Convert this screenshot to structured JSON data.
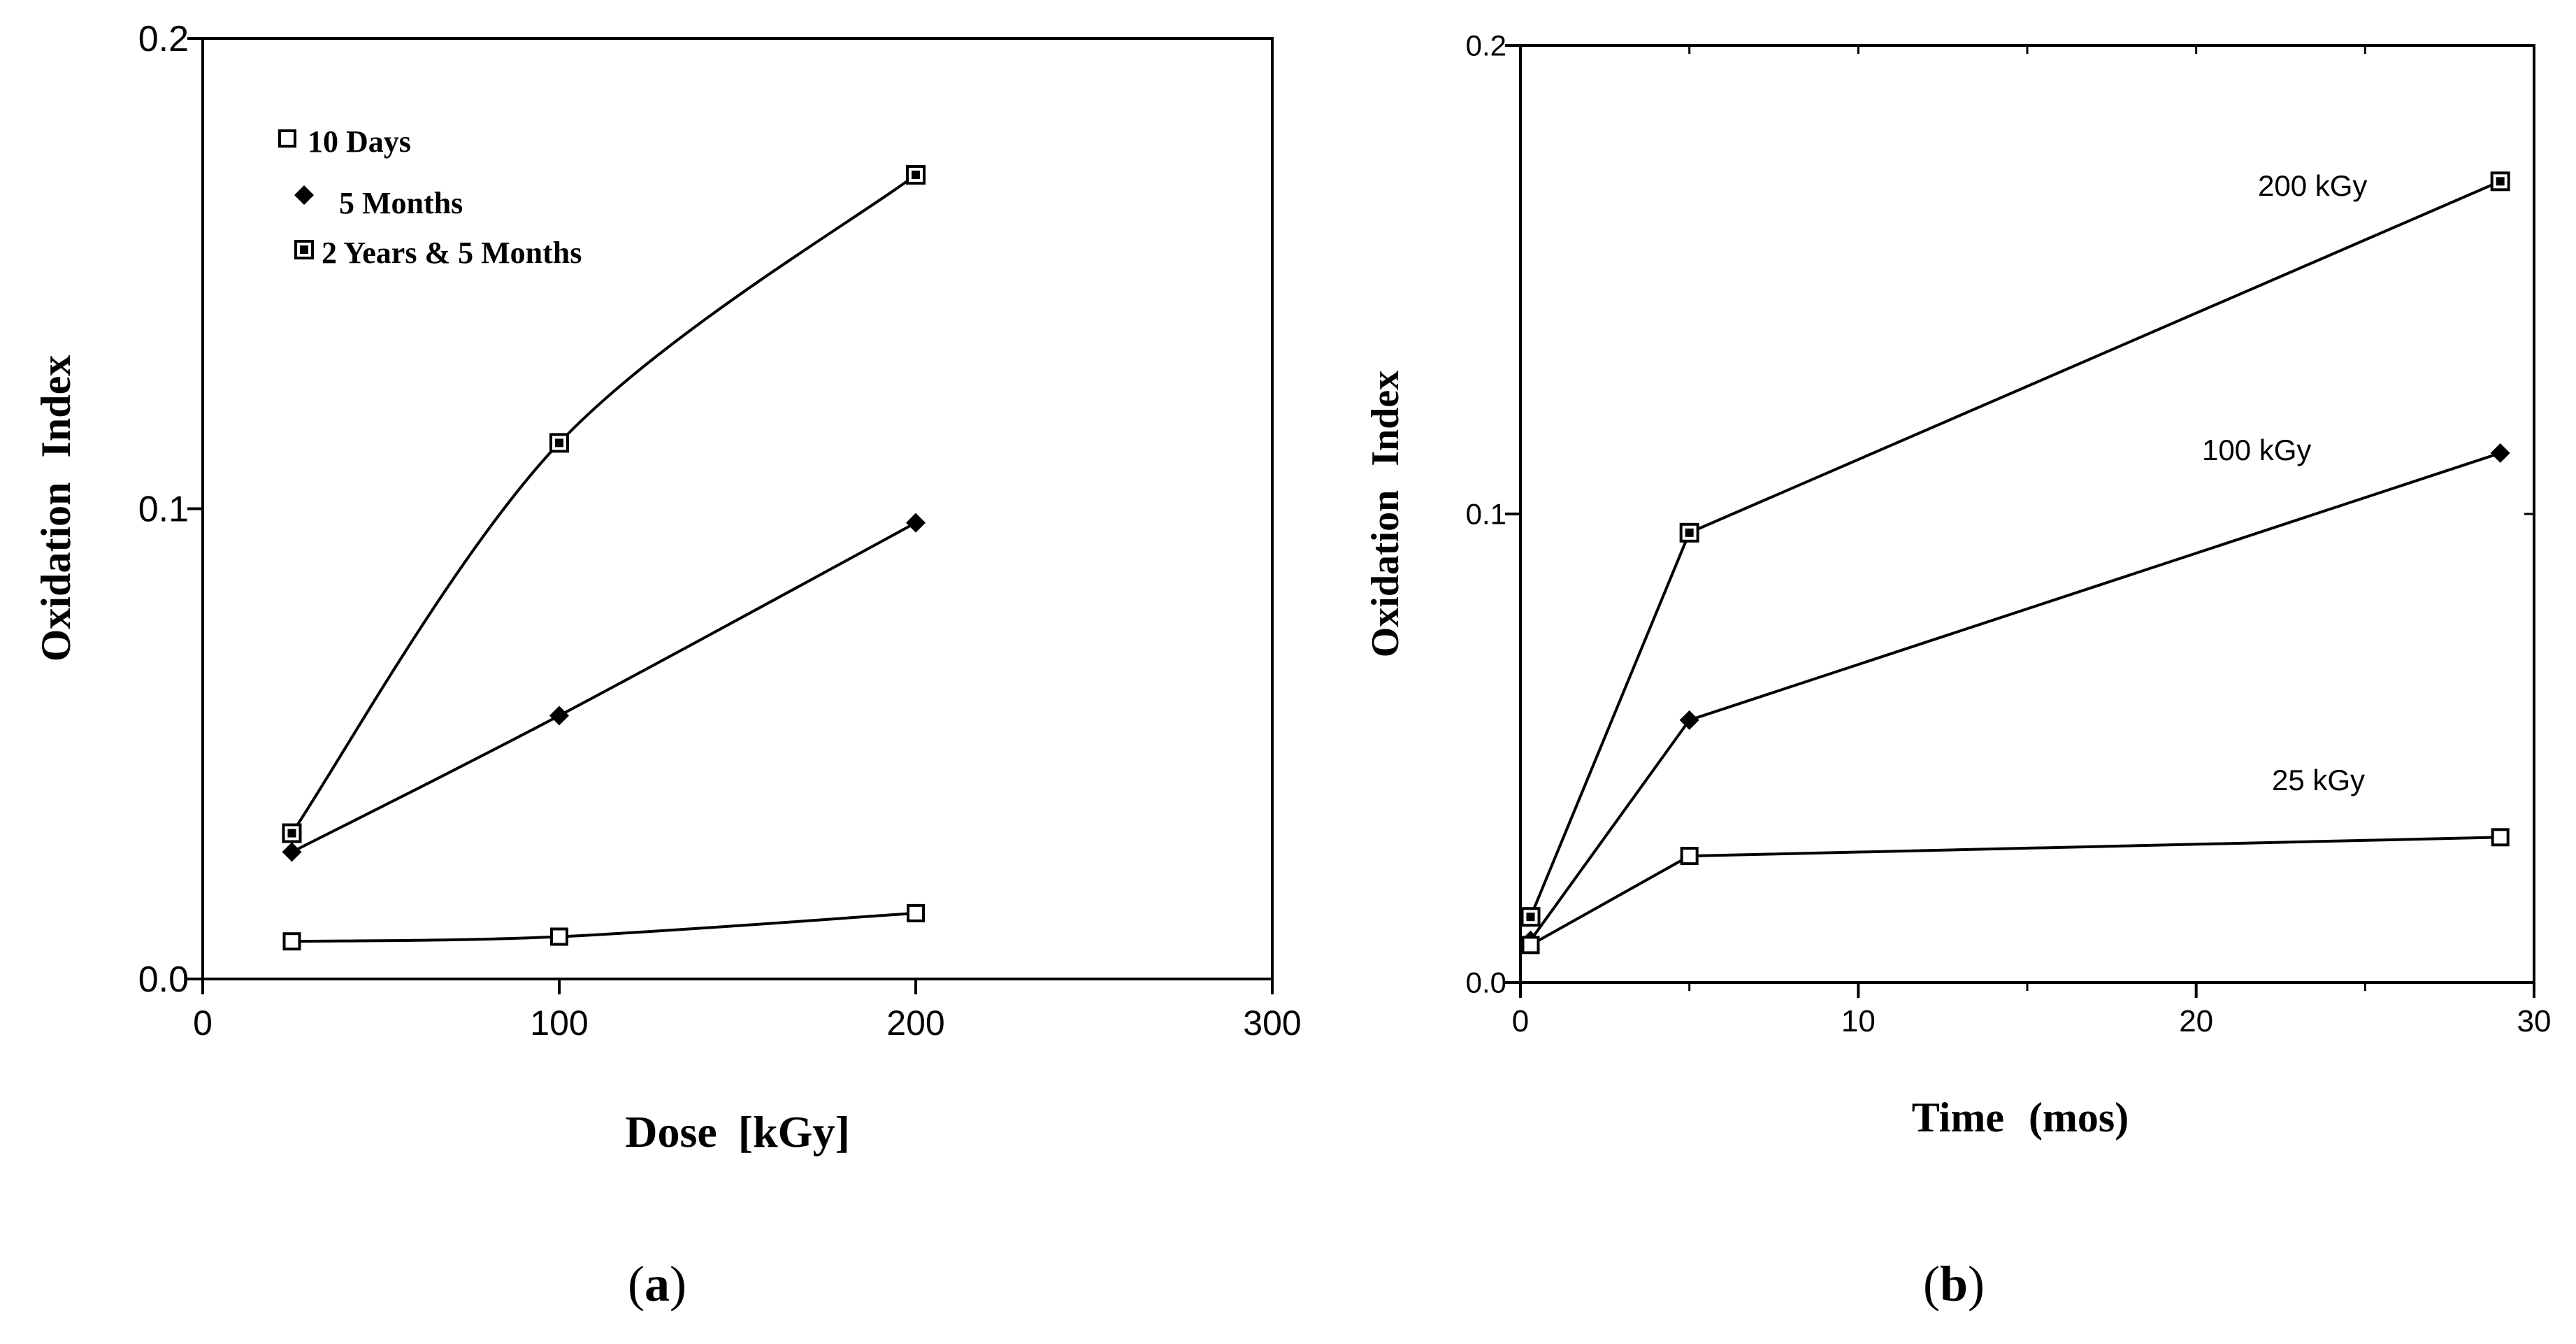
{
  "chart_data": [
    {
      "type": "line",
      "panel_label": "a",
      "title": "",
      "xlabel": "Dose [kGy]",
      "ylabel": "Oxidation Index",
      "xlim": [
        0,
        300
      ],
      "ylim": [
        0,
        0.2
      ],
      "xticks": [
        0,
        100,
        200,
        300
      ],
      "xtick_labels": [
        "0",
        "100",
        "200",
        "300"
      ],
      "yticks": [
        0,
        0.1,
        0.2
      ],
      "ytick_labels": [
        "0.0",
        "0.1",
        "0.2"
      ],
      "grid": false,
      "legend_position": "top-left",
      "series": [
        {
          "name": "10 Days",
          "marker": "open-square",
          "x": [
            25,
            100,
            200
          ],
          "values": [
            0.008,
            0.009,
            0.014
          ]
        },
        {
          "name": "5 Months",
          "marker": "diamond",
          "x": [
            25,
            100,
            200
          ],
          "values": [
            0.027,
            0.056,
            0.097
          ]
        },
        {
          "name": "2 Years & 5 Months",
          "marker": "filled-square",
          "x": [
            25,
            100,
            200
          ],
          "values": [
            0.031,
            0.114,
            0.171
          ]
        }
      ]
    },
    {
      "type": "line",
      "panel_label": "b",
      "title": "",
      "xlabel": "Time (mos)",
      "ylabel": "Oxidation Index",
      "xlim": [
        0,
        30
      ],
      "ylim": [
        0,
        0.2
      ],
      "xticks": [
        0,
        10,
        20,
        30
      ],
      "xtick_labels": [
        "0",
        "10",
        "20",
        "30"
      ],
      "yticks": [
        0,
        0.1,
        0.2
      ],
      "ytick_labels": [
        "0.0",
        "0.1",
        "0.2"
      ],
      "grid": false,
      "series": [
        {
          "name": "200 kGy",
          "marker": "filled-square",
          "x": [
            0.3,
            5,
            29
          ],
          "values": [
            0.014,
            0.096,
            0.171
          ]
        },
        {
          "name": "100 kGy",
          "marker": "diamond",
          "x": [
            0.3,
            5,
            29
          ],
          "values": [
            0.009,
            0.056,
            0.113
          ]
        },
        {
          "name": "25 kGy",
          "marker": "open-square",
          "x": [
            0.3,
            5,
            29
          ],
          "values": [
            0.008,
            0.027,
            0.031
          ]
        }
      ]
    }
  ]
}
